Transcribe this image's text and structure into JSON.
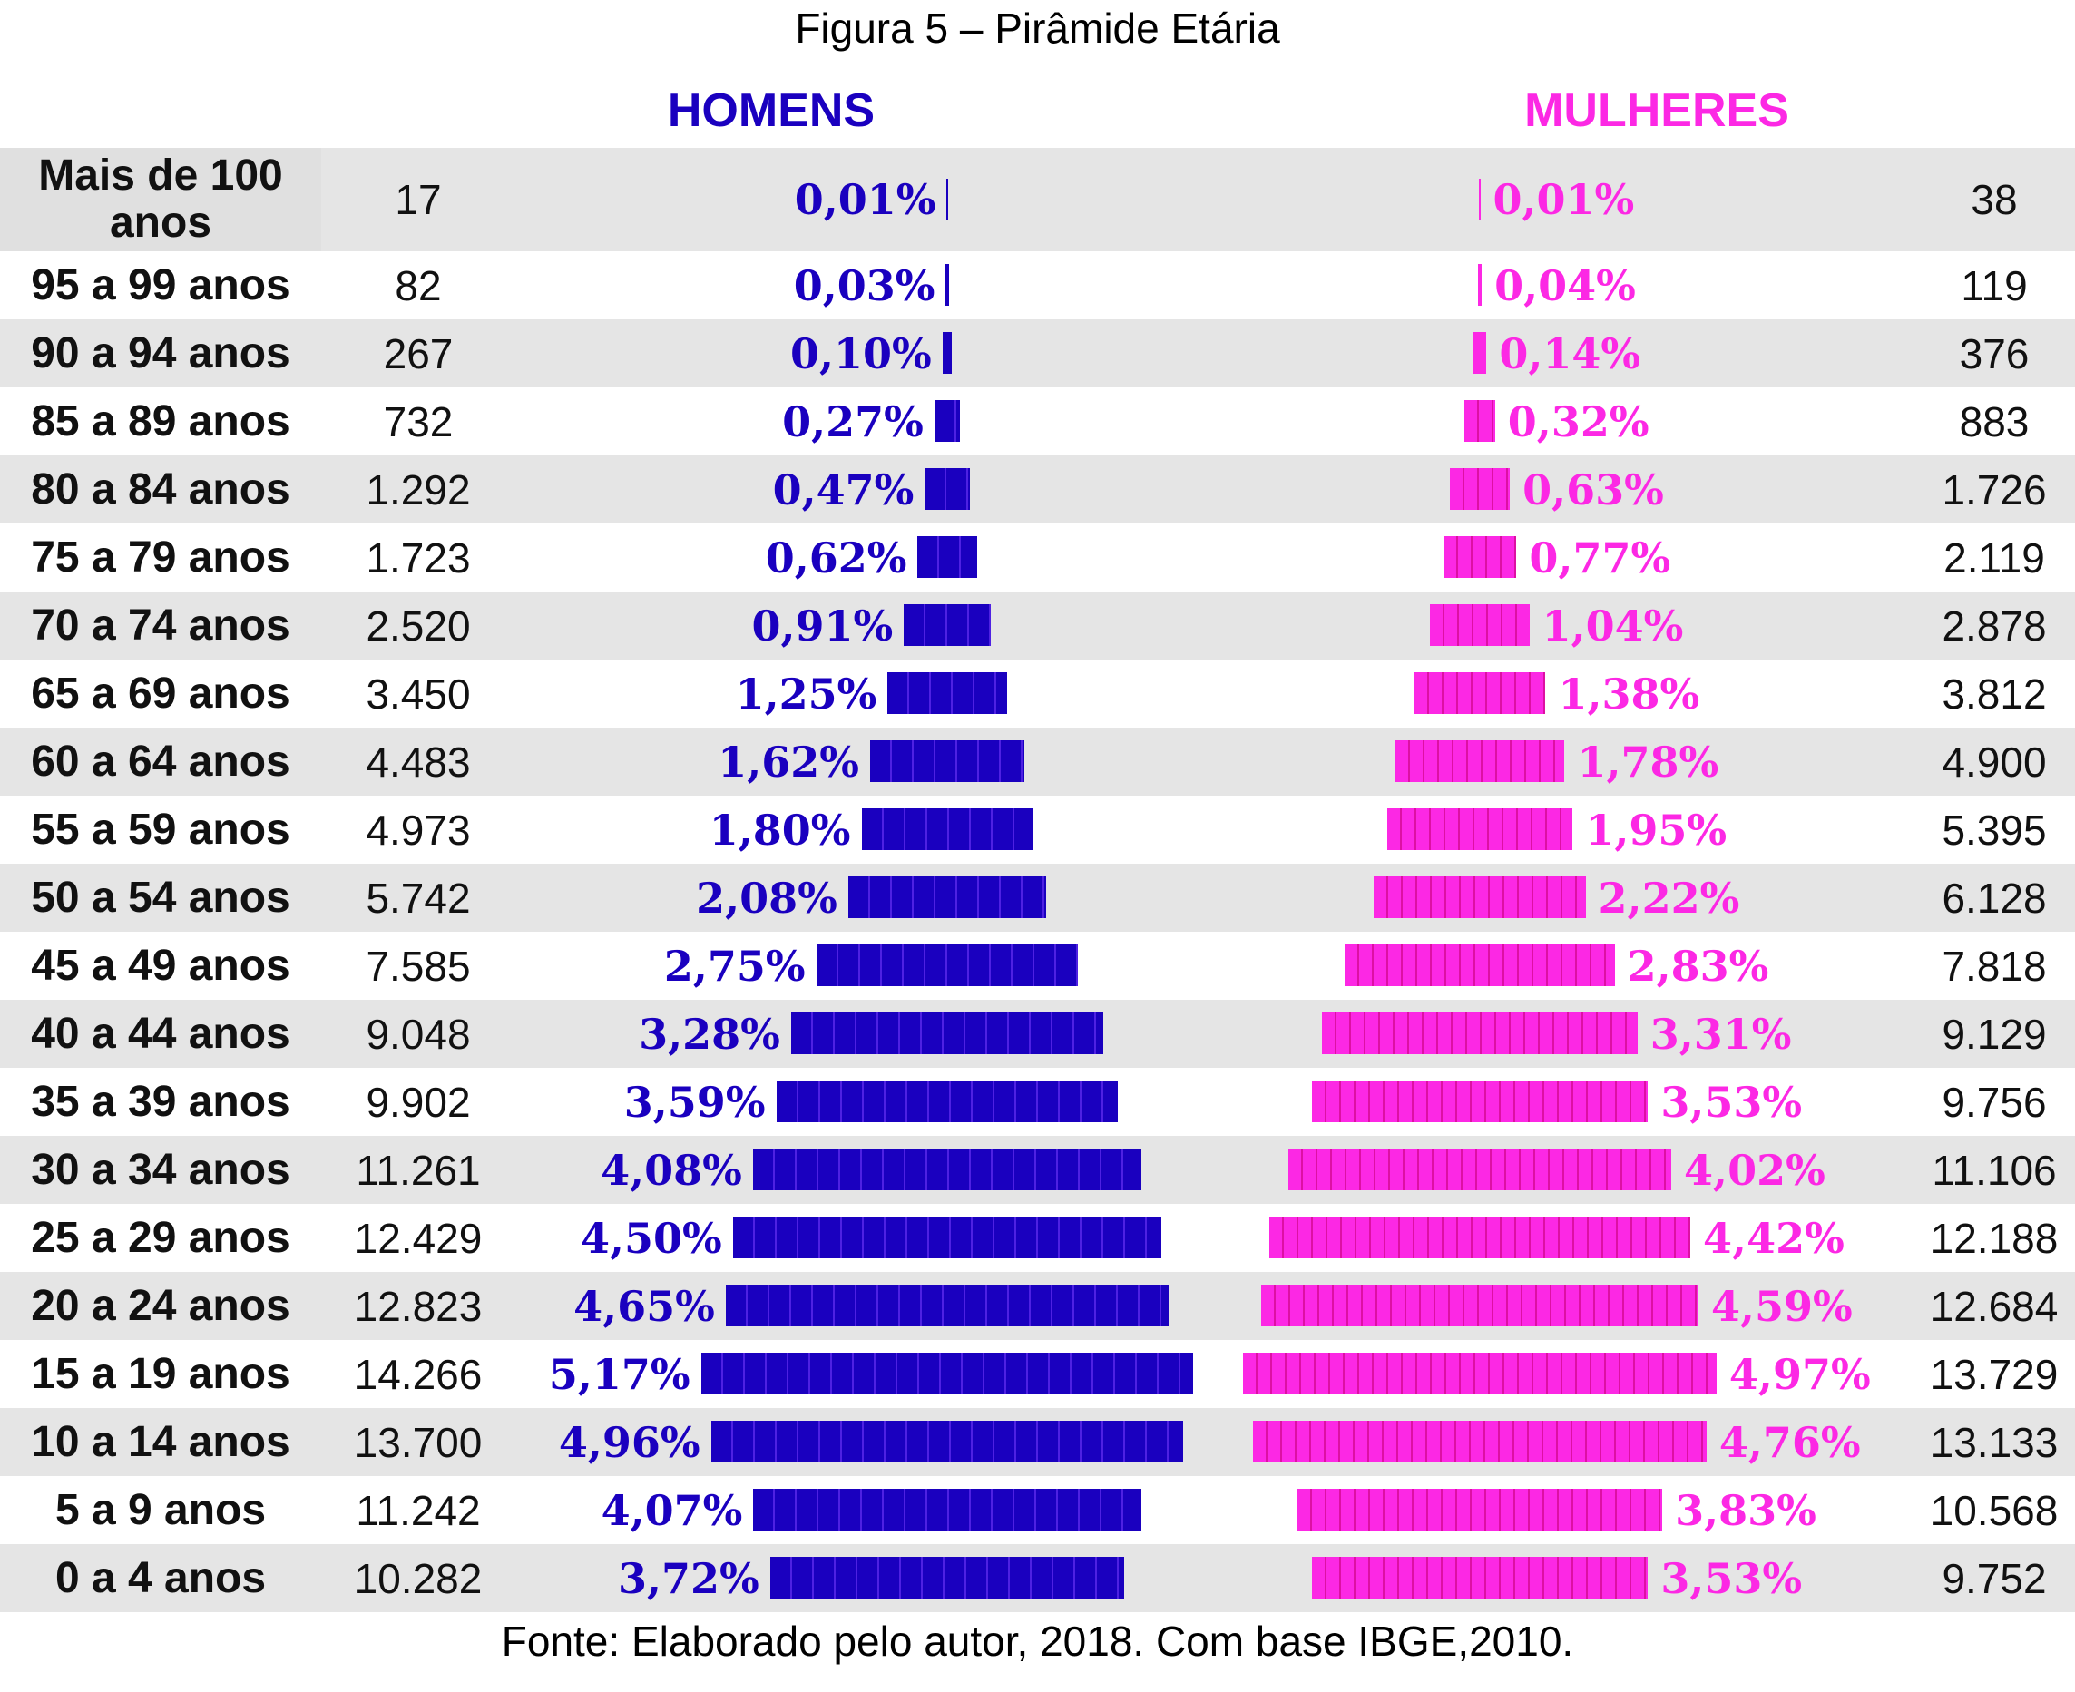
{
  "chart_data": {
    "type": "bar",
    "title": "Figura 5 – Pirâmide Etária",
    "source": "Fonte: Elaborado pelo autor, 2018. Com base IBGE,2010.",
    "series_labels": {
      "male": "HOMENS",
      "female": "MULHERES"
    },
    "colors": {
      "male": "#1a00bf",
      "female": "#fc28e4"
    },
    "categories": [
      "Mais de 100 anos",
      "95 a 99 anos",
      "90 a 94 anos",
      "85 a 89 anos",
      "80 a 84 anos",
      "75 a 79 anos",
      "70 a 74 anos",
      "65 a 69 anos",
      "60 a 64 anos",
      "55 a 59 anos",
      "50 a 54 anos",
      "45 a 49 anos",
      "40 a 44 anos",
      "35 a 39 anos",
      "30 a 34 anos",
      "25 a 29 anos",
      "20 a 24 anos",
      "15 a 19 anos",
      "10 a 14 anos",
      "5 a 9 anos",
      "0 a 4 anos"
    ],
    "male_counts": [
      "17",
      "82",
      "267",
      "732",
      "1.292",
      "1.723",
      "2.520",
      "3.450",
      "4.483",
      "4.973",
      "5.742",
      "7.585",
      "9.048",
      "9.902",
      "11.261",
      "12.429",
      "12.823",
      "14.266",
      "13.700",
      "11.242",
      "10.282"
    ],
    "male_pct": [
      0.01,
      0.03,
      0.1,
      0.27,
      0.47,
      0.62,
      0.91,
      1.25,
      1.62,
      1.8,
      2.08,
      2.75,
      3.28,
      3.59,
      4.08,
      4.5,
      4.65,
      5.17,
      4.96,
      4.07,
      3.72
    ],
    "male_pct_labels": [
      "0,01%",
      "0,03%",
      "0,10%",
      "0,27%",
      "0,47%",
      "0,62%",
      "0,91%",
      "1,25%",
      "1,62%",
      "1,80%",
      "2,08%",
      "2,75%",
      "3,28%",
      "3,59%",
      "4,08%",
      "4,50%",
      "4,65%",
      "5,17%",
      "4,96%",
      "4,07%",
      "3,72%"
    ],
    "female_pct": [
      0.01,
      0.04,
      0.14,
      0.32,
      0.63,
      0.77,
      1.04,
      1.38,
      1.78,
      1.95,
      2.22,
      2.83,
      3.31,
      3.53,
      4.02,
      4.42,
      4.59,
      4.97,
      4.76,
      3.83,
      3.53
    ],
    "female_pct_labels": [
      "0,01%",
      "0,04%",
      "0,14%",
      "0,32%",
      "0,63%",
      "0,77%",
      "1,04%",
      "1,38%",
      "1,78%",
      "1,95%",
      "2,22%",
      "2,83%",
      "3,31%",
      "3,53%",
      "4,02%",
      "4,42%",
      "4,59%",
      "4,97%",
      "4,76%",
      "3,83%",
      "3,53%"
    ],
    "female_counts": [
      "38",
      "119",
      "376",
      "883",
      "1.726",
      "2.119",
      "2.878",
      "3.812",
      "4.900",
      "5.395",
      "6.128",
      "7.818",
      "9.129",
      "9.756",
      "11.106",
      "12.188",
      "12.684",
      "13.729",
      "13.133",
      "10.568",
      "9.752"
    ]
  }
}
